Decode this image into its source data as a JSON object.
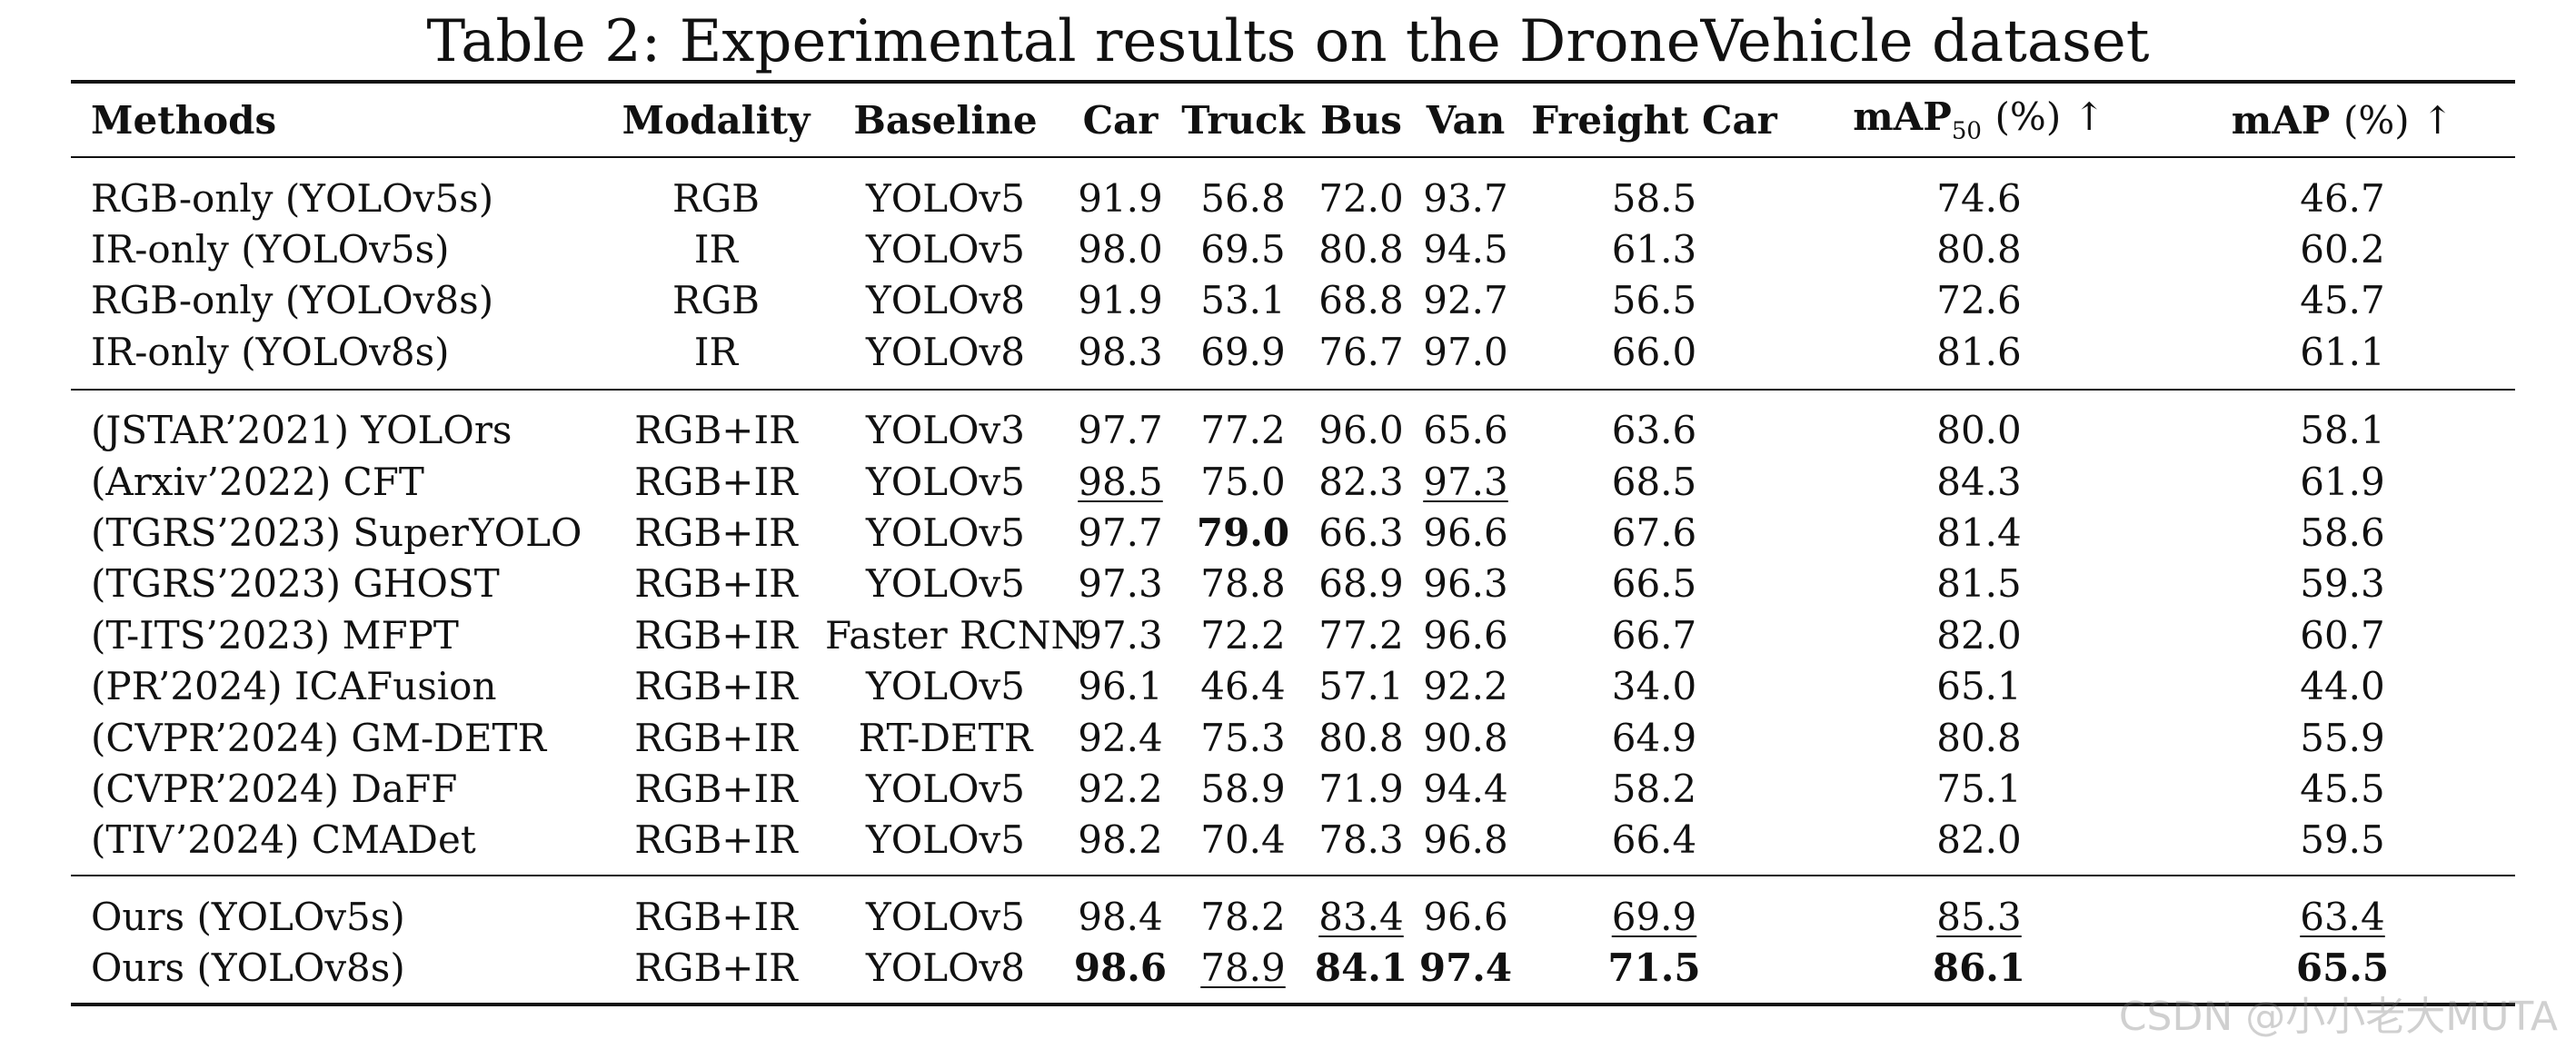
{
  "caption": "Table 2: Experimental results on the DroneVehicle dataset",
  "headers": [
    "Methods",
    "Modality",
    "Baseline",
    "Car",
    "Truck",
    "Bus",
    "Van",
    "Freight Car",
    "mAP",
    "mAP"
  ],
  "header_extras": {
    "map50_sub": "50",
    "map50_unit": "(%) ↑",
    "map_unit": "(%) ↑"
  },
  "groups": [
    [
      {
        "method": "RGB-only (YOLOv5s)",
        "modality": "RGB",
        "baseline": "YOLOv5",
        "car": "91.9",
        "truck": "56.8",
        "bus": "72.0",
        "van": "93.7",
        "freight": "58.5",
        "map50": "74.6",
        "map": "46.7"
      },
      {
        "method": "IR-only (YOLOv5s)",
        "modality": "IR",
        "baseline": "YOLOv5",
        "car": "98.0",
        "truck": "69.5",
        "bus": "80.8",
        "van": "94.5",
        "freight": "61.3",
        "map50": "80.8",
        "map": "60.2"
      },
      {
        "method": "RGB-only (YOLOv8s)",
        "modality": "RGB",
        "baseline": "YOLOv8",
        "car": "91.9",
        "truck": "53.1",
        "bus": "68.8",
        "van": "92.7",
        "freight": "56.5",
        "map50": "72.6",
        "map": "45.7"
      },
      {
        "method": "IR-only (YOLOv8s)",
        "modality": "IR",
        "baseline": "YOLOv8",
        "car": "98.3",
        "truck": "69.9",
        "bus": "76.7",
        "van": "97.0",
        "freight": "66.0",
        "map50": "81.6",
        "map": "61.1"
      }
    ],
    [
      {
        "method": "(JSTAR’2021) YOLOrs",
        "modality": "RGB+IR",
        "baseline": "YOLOv3",
        "car": "97.7",
        "truck": "77.2",
        "bus": "96.0",
        "van": "65.6",
        "freight": "63.6",
        "map50": "80.0",
        "map": "58.1"
      },
      {
        "method": "(Arxiv’2022) CFT",
        "modality": "RGB+IR",
        "baseline": "YOLOv5",
        "car": "98.5",
        "truck": "75.0",
        "bus": "82.3",
        "van": "97.3",
        "freight": "68.5",
        "map50": "84.3",
        "map": "61.9"
      },
      {
        "method": "(TGRS’2023) SuperYOLO",
        "modality": "RGB+IR",
        "baseline": "YOLOv5",
        "car": "97.7",
        "truck": "79.0",
        "bus": "66.3",
        "van": "96.6",
        "freight": "67.6",
        "map50": "81.4",
        "map": "58.6"
      },
      {
        "method": "(TGRS’2023) GHOST",
        "modality": "RGB+IR",
        "baseline": "YOLOv5",
        "car": "97.3",
        "truck": "78.8",
        "bus": "68.9",
        "van": "96.3",
        "freight": "66.5",
        "map50": "81.5",
        "map": "59.3"
      },
      {
        "method": "(T-ITS’2023) MFPT",
        "modality": "RGB+IR",
        "baseline": "Faster RCNN",
        "car": "97.3",
        "truck": "72.2",
        "bus": "77.2",
        "van": "96.6",
        "freight": "66.7",
        "map50": "82.0",
        "map": "60.7"
      },
      {
        "method": "(PR’2024) ICAFusion",
        "modality": "RGB+IR",
        "baseline": "YOLOv5",
        "car": "96.1",
        "truck": "46.4",
        "bus": "57.1",
        "van": "92.2",
        "freight": "34.0",
        "map50": "65.1",
        "map": "44.0"
      },
      {
        "method": "(CVPR’2024) GM-DETR",
        "modality": "RGB+IR",
        "baseline": "RT-DETR",
        "car": "92.4",
        "truck": "75.3",
        "bus": "80.8",
        "van": "90.8",
        "freight": "64.9",
        "map50": "80.8",
        "map": "55.9"
      },
      {
        "method": "(CVPR’2024) DaFF",
        "modality": "RGB+IR",
        "baseline": "YOLOv5",
        "car": "92.2",
        "truck": "58.9",
        "bus": "71.9",
        "van": "94.4",
        "freight": "58.2",
        "map50": "75.1",
        "map": "45.5"
      },
      {
        "method": "(TIV’2024) CMADet",
        "modality": "RGB+IR",
        "baseline": "YOLOv5",
        "car": "98.2",
        "truck": "70.4",
        "bus": "78.3",
        "van": "96.8",
        "freight": "66.4",
        "map50": "82.0",
        "map": "59.5"
      }
    ],
    [
      {
        "method": "Ours (YOLOv5s)",
        "modality": "RGB+IR",
        "baseline": "YOLOv5",
        "car": "98.4",
        "truck": "78.2",
        "bus": "83.4",
        "van": "96.6",
        "freight": "69.9",
        "map50": "85.3",
        "map": "63.4"
      },
      {
        "method": "Ours (YOLOv8s)",
        "modality": "RGB+IR",
        "baseline": "YOLOv8",
        "car": "98.6",
        "truck": "78.9",
        "bus": "84.1",
        "van": "97.4",
        "freight": "71.5",
        "map50": "86.1",
        "map": "65.5"
      }
    ]
  ],
  "watermark": "CSDN @小小老大MUTA"
}
